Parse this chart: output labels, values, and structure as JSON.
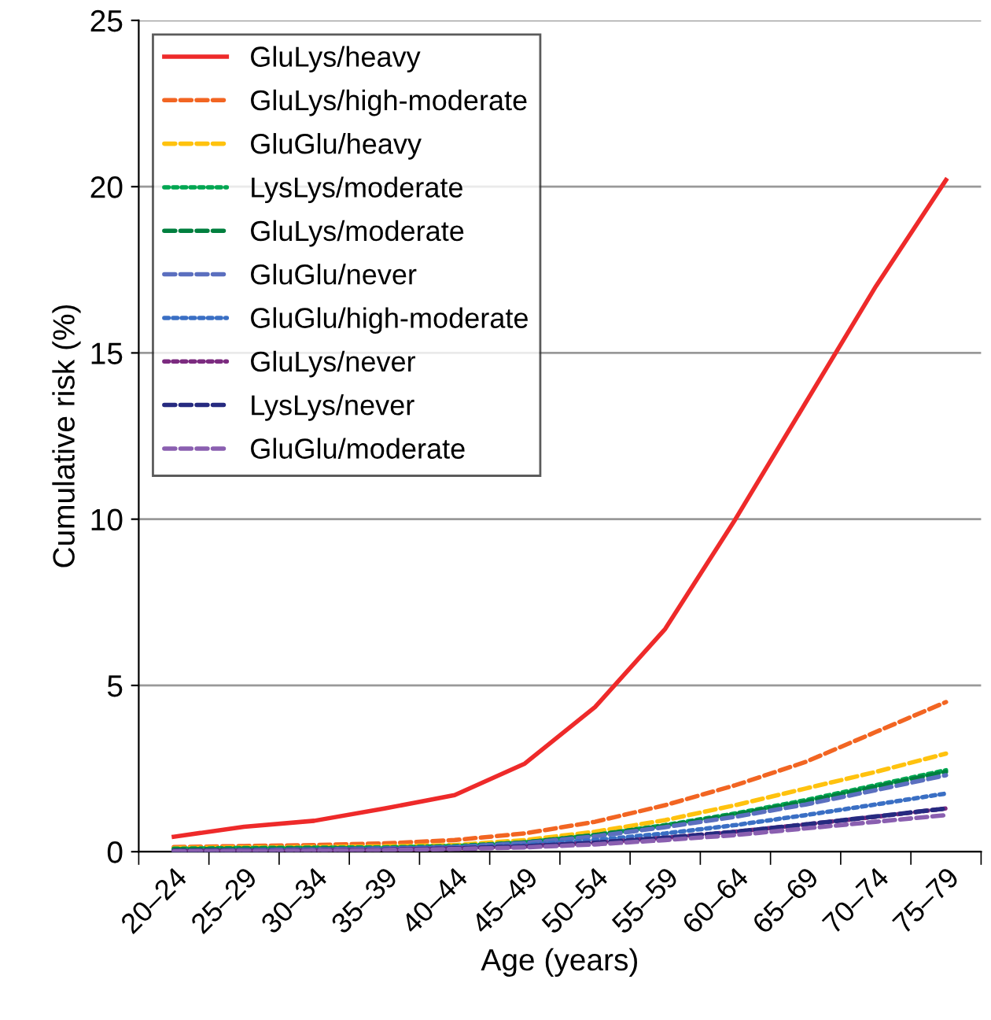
{
  "chart_data": {
    "type": "line",
    "xlabel": "Age (years)",
    "ylabel": "Cumulative risk (%)",
    "categories": [
      "20–24",
      "25–29",
      "30–34",
      "35–39",
      "40–44",
      "45–49",
      "50–54",
      "55–59",
      "60–64",
      "65–69",
      "70–74",
      "75–79"
    ],
    "ylim": [
      0,
      25
    ],
    "yticks": [
      0,
      5,
      10,
      15,
      20,
      25
    ],
    "grid": "y",
    "legend": "top left",
    "marker": "none",
    "series": [
      {
        "name": "GluLys/heavy",
        "color": "#ee2a2a",
        "line_style": "solid",
        "values": [
          0.45,
          0.75,
          0.93,
          1.3,
          1.7,
          2.65,
          4.35,
          6.7,
          10.0,
          13.5,
          17.0,
          20.2
        ]
      },
      {
        "name": "GluLys/high-moderate",
        "color": "#f26522",
        "line_style": "dashed",
        "values": [
          0.14,
          0.17,
          0.2,
          0.25,
          0.35,
          0.55,
          0.9,
          1.4,
          2.0,
          2.7,
          3.6,
          4.5
        ]
      },
      {
        "name": "GluGlu/heavy",
        "color": "#ffc20e",
        "line_style": "dashed",
        "values": [
          0.11,
          0.13,
          0.14,
          0.16,
          0.2,
          0.35,
          0.6,
          0.95,
          1.4,
          1.9,
          2.4,
          2.95
        ]
      },
      {
        "name": "LysLys/moderate",
        "color": "#00a651",
        "line_style": "dotted",
        "values": [
          0.09,
          0.11,
          0.12,
          0.13,
          0.17,
          0.28,
          0.5,
          0.8,
          1.15,
          1.55,
          2.0,
          2.45
        ]
      },
      {
        "name": "GluLys/moderate",
        "color": "#007f3e",
        "line_style": "dashed",
        "values": [
          0.07,
          0.09,
          0.1,
          0.11,
          0.15,
          0.28,
          0.5,
          0.78,
          1.12,
          1.5,
          1.95,
          2.4
        ]
      },
      {
        "name": "GluGlu/never",
        "color": "#5b6fbf",
        "line_style": "dashed",
        "values": [
          0.03,
          0.05,
          0.07,
          0.1,
          0.14,
          0.26,
          0.46,
          0.74,
          1.05,
          1.42,
          1.85,
          2.3
        ]
      },
      {
        "name": "GluGlu/high-moderate",
        "color": "#3a6fc4",
        "line_style": "dotted",
        "values": [
          0.02,
          0.04,
          0.05,
          0.08,
          0.12,
          0.2,
          0.35,
          0.55,
          0.8,
          1.1,
          1.42,
          1.75
        ]
      },
      {
        "name": "GluLys/never",
        "color": "#7b2a7f",
        "line_style": "dotted",
        "values": [
          0.02,
          0.03,
          0.04,
          0.06,
          0.1,
          0.16,
          0.27,
          0.42,
          0.6,
          0.82,
          1.05,
          1.3
        ]
      },
      {
        "name": "LysLys/never",
        "color": "#262a80",
        "line_style": "dashed",
        "values": [
          0.02,
          0.03,
          0.04,
          0.06,
          0.1,
          0.16,
          0.27,
          0.42,
          0.6,
          0.82,
          1.06,
          1.3
        ]
      },
      {
        "name": "GluGlu/moderate",
        "color": "#8a5fb0",
        "line_style": "dashed",
        "values": [
          0.01,
          0.02,
          0.03,
          0.05,
          0.08,
          0.13,
          0.22,
          0.35,
          0.5,
          0.7,
          0.9,
          1.1
        ]
      }
    ]
  }
}
